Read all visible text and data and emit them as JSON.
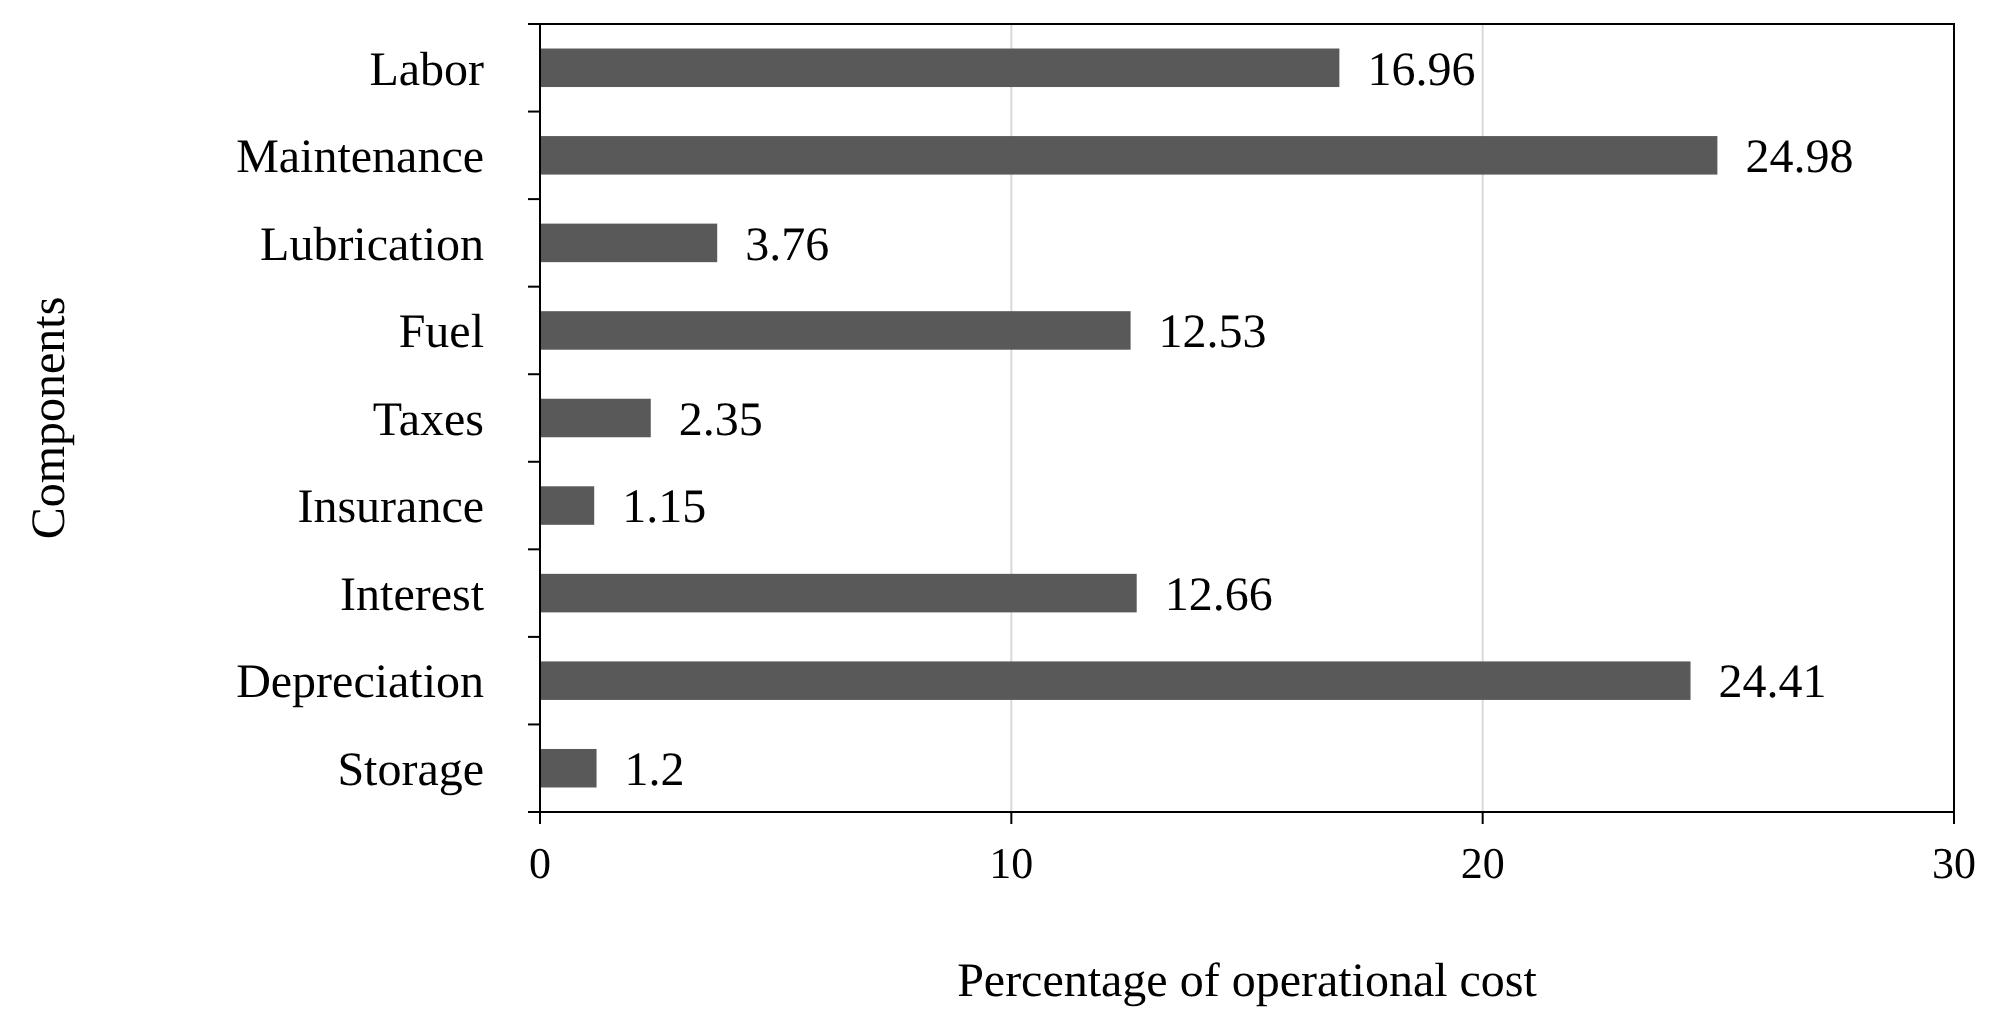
{
  "chart_data": {
    "type": "bar",
    "orientation": "horizontal",
    "xlabel": "Percentage of operational cost",
    "ylabel": "Components",
    "categories": [
      "Labor",
      "Maintenance",
      "Lubrication",
      "Fuel",
      "Taxes",
      "Insurance",
      "Interest",
      "Depreciation",
      "Storage"
    ],
    "values": [
      16.96,
      24.98,
      3.76,
      12.53,
      2.35,
      1.15,
      12.66,
      24.41,
      1.2
    ],
    "color": "#595959",
    "xlim": [
      0,
      30
    ],
    "xticks": [
      0,
      10,
      20,
      30
    ],
    "grid": "x",
    "data_labels": true
  }
}
